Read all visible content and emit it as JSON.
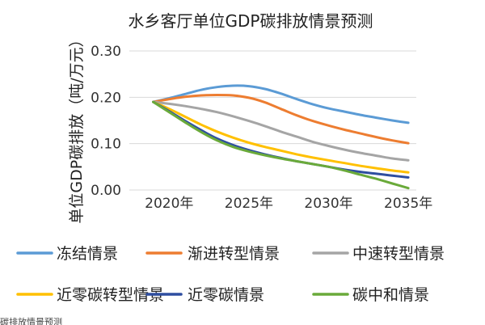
{
  "chart_data": {
    "type": "line",
    "title": "水乡客厅单位GDP碳排放情景预测",
    "xlabel": "",
    "ylabel": "单位GDP碳排放（吨/万元）",
    "categories": [
      "2020年",
      "2025年",
      "2030年",
      "2035年"
    ],
    "x": [
      2019,
      2020,
      2021,
      2022,
      2023,
      2024,
      2025,
      2026,
      2027,
      2028,
      2029,
      2030,
      2031,
      2032,
      2033,
      2034,
      2035
    ],
    "xlim": [
      2017.5,
      2035.5
    ],
    "xticks": [
      2020,
      2025,
      2030,
      2035
    ],
    "ylim": [
      0,
      0.3
    ],
    "yticks": [
      "0.00",
      "0.10",
      "0.20",
      "0.30"
    ],
    "grid": true,
    "legend_position": "bottom",
    "series": [
      {
        "name": "冻结情景",
        "color": "#5b9bd5",
        "values": [
          0.19,
          0.198,
          0.207,
          0.216,
          0.222,
          0.225,
          0.224,
          0.218,
          0.208,
          0.196,
          0.185,
          0.176,
          0.169,
          0.162,
          0.156,
          0.15,
          0.145
        ]
      },
      {
        "name": "渐进转型情景",
        "color": "#ed7d31",
        "values": [
          0.19,
          0.196,
          0.201,
          0.204,
          0.205,
          0.204,
          0.199,
          0.189,
          0.175,
          0.161,
          0.149,
          0.139,
          0.13,
          0.122,
          0.114,
          0.107,
          0.101
        ]
      },
      {
        "name": "中速转型情景",
        "color": "#a5a5a5",
        "values": [
          0.19,
          0.186,
          0.181,
          0.175,
          0.168,
          0.159,
          0.149,
          0.138,
          0.126,
          0.115,
          0.104,
          0.095,
          0.087,
          0.08,
          0.074,
          0.068,
          0.064
        ]
      },
      {
        "name": "近零碳转型情景",
        "color": "#ffc000",
        "values": [
          0.19,
          0.175,
          0.158,
          0.141,
          0.126,
          0.113,
          0.102,
          0.093,
          0.085,
          0.077,
          0.07,
          0.064,
          0.058,
          0.052,
          0.047,
          0.042,
          0.038
        ]
      },
      {
        "name": "近零碳情景",
        "color": "#2e4ea0",
        "values": [
          0.19,
          0.17,
          0.149,
          0.129,
          0.111,
          0.097,
          0.086,
          0.077,
          0.069,
          0.062,
          0.056,
          0.05,
          0.044,
          0.039,
          0.035,
          0.031,
          0.027
        ]
      },
      {
        "name": "碳中和情景",
        "color": "#6aaa3a",
        "values": [
          0.19,
          0.168,
          0.146,
          0.125,
          0.107,
          0.093,
          0.083,
          0.075,
          0.068,
          0.062,
          0.056,
          0.05,
          0.042,
          0.033,
          0.024,
          0.014,
          0.004
        ]
      }
    ]
  },
  "caption_fragment": "碳排放情景预测"
}
